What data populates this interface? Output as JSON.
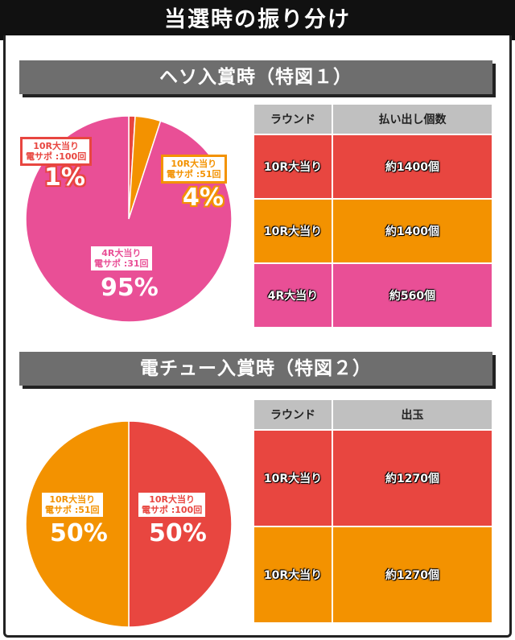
{
  "title": "当選時の振り分け",
  "colors": {
    "red": "#e84640",
    "orange": "#f39200",
    "pink": "#e94f96"
  },
  "sections": [
    {
      "heading": "ヘソ入賞時（特図１）",
      "chart_data": {
        "type": "pie",
        "slices": [
          {
            "round": "10R大当り",
            "sub": "電サポ :100回",
            "percent_label": "1%",
            "value": 1,
            "color": "#e84640"
          },
          {
            "round": "10R大当り",
            "sub": "電サポ :51回",
            "percent_label": "4%",
            "value": 4,
            "color": "#f39200"
          },
          {
            "round": "4R大当り",
            "sub": "電サポ :31回",
            "percent_label": "95%",
            "value": 95,
            "color": "#e94f96"
          }
        ]
      },
      "table": {
        "headers": [
          "ラウンド",
          "払い出し個数"
        ],
        "rows": [
          {
            "round": "10R大当り",
            "value": "約1400個",
            "color": "#e84640"
          },
          {
            "round": "10R大当り",
            "value": "約1400個",
            "color": "#f39200"
          },
          {
            "round": "4R大当り",
            "value": "約560個",
            "color": "#e94f96"
          }
        ]
      }
    },
    {
      "heading": "電チュー入賞時（特図２）",
      "chart_data": {
        "type": "pie",
        "slices": [
          {
            "round": "10R大当り",
            "sub": "電サポ :100回",
            "percent_label": "50%",
            "value": 50,
            "color": "#e84640"
          },
          {
            "round": "10R大当り",
            "sub": "電サポ :51回",
            "percent_label": "50%",
            "value": 50,
            "color": "#f39200"
          }
        ]
      },
      "table": {
        "headers": [
          "ラウンド",
          "出玉"
        ],
        "rows": [
          {
            "round": "10R大当り",
            "value": "約1270個",
            "color": "#e84640"
          },
          {
            "round": "10R大当り",
            "value": "約1270個",
            "color": "#f39200"
          }
        ]
      }
    }
  ]
}
